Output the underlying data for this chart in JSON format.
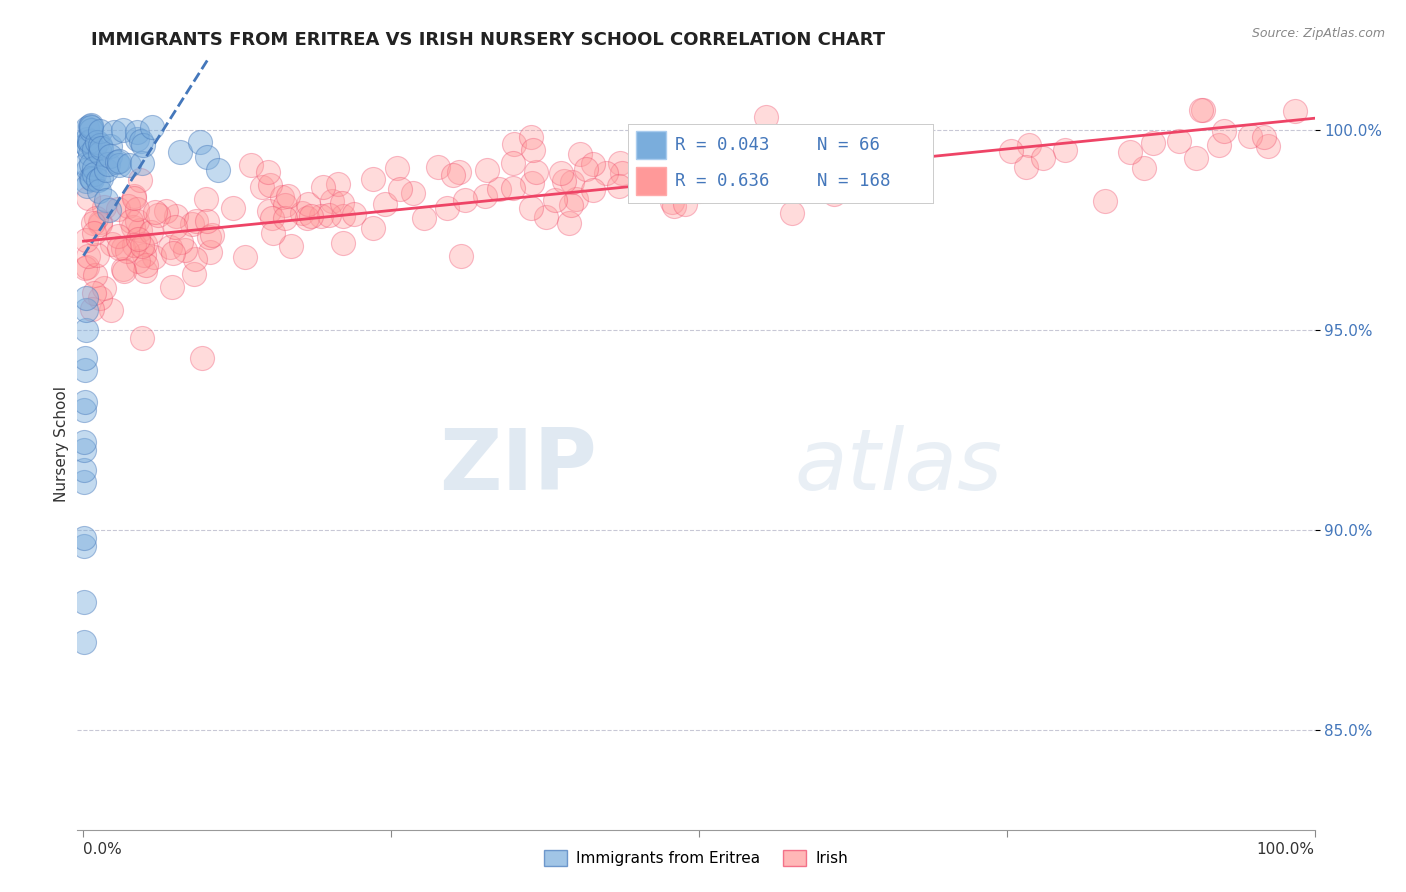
{
  "title": "IMMIGRANTS FROM ERITREA VS IRISH NURSERY SCHOOL CORRELATION CHART",
  "source": "Source: ZipAtlas.com",
  "ylabel": "Nursery School",
  "legend_labels": [
    "Immigrants from Eritrea",
    "Irish"
  ],
  "eritrea_R": 0.043,
  "eritrea_N": 66,
  "irish_R": 0.636,
  "irish_N": 168,
  "color_eritrea": "#7AADDC",
  "color_eritrea_line": "#4477BB",
  "color_irish": "#FF9999",
  "color_irish_line": "#EE4466",
  "color_grid": "#BBBBCC",
  "ytick_values": [
    0.85,
    0.9,
    0.95,
    1.0
  ],
  "xlim": [
    -0.005,
    1.0
  ],
  "ylim": [
    0.825,
    1.018
  ],
  "background_color": "#FFFFFF",
  "watermark_ZIP": "ZIP",
  "watermark_atlas": "atlas",
  "title_fontsize": 13,
  "axis_label_fontsize": 11,
  "tick_fontsize": 11,
  "seed": 99
}
